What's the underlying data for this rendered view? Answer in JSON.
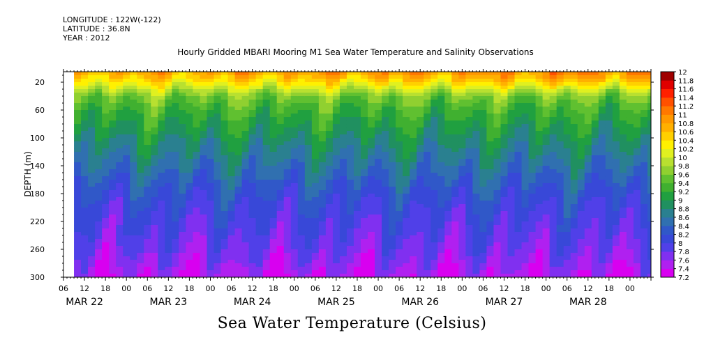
{
  "header": {
    "longitude": "LONGITUDE : 122W(-122)",
    "latitude": "LATITUDE : 36.8N",
    "year": "YEAR : 2012"
  },
  "chart_data": {
    "type": "heatmap",
    "title": "Hourly Gridded MBARI Mooring M1 Sea Water Temperature and Salinity Observations",
    "xlabel": "",
    "ylabel": "DEPTH (m)",
    "variable_label": "Sea Water Temperature (Celsius)",
    "x_hour_ticks": [
      "06",
      "12",
      "18",
      "00",
      "06",
      "12",
      "18",
      "00",
      "06",
      "12",
      "18",
      "00",
      "06",
      "12",
      "18",
      "00",
      "06",
      "12",
      "18",
      "00",
      "06",
      "12",
      "18",
      "00",
      "06",
      "12",
      "18",
      "00"
    ],
    "x_date_ticks": [
      "MAR 22",
      "MAR 23",
      "MAR 24",
      "MAR 25",
      "MAR 26",
      "MAR 27",
      "MAR 28"
    ],
    "x_range_hours": [
      0,
      168
    ],
    "data_start_hour": 3,
    "y_ticks": [
      20,
      60,
      100,
      140,
      180,
      220,
      260,
      300
    ],
    "ylim": [
      300,
      5
    ],
    "colorbar_levels": [
      7.2,
      7.4,
      7.6,
      7.8,
      8,
      8.2,
      8.4,
      8.6,
      8.8,
      9,
      9.2,
      9.4,
      9.6,
      9.8,
      10,
      10.2,
      10.4,
      10.6,
      10.8,
      11,
      11.2,
      11.4,
      11.6,
      11.8,
      12
    ],
    "colorbar_labels": [
      "12",
      "11.8",
      "11.6",
      "11.4",
      "11.2",
      "11",
      "10.8",
      "10.6",
      "10.4",
      "10.2",
      "10",
      "9.8",
      "9.6",
      "9.4",
      "9.2",
      "9",
      "8.8",
      "8.6",
      "8.4",
      "8.2",
      "8",
      "7.8",
      "7.6",
      "7.4",
      "7.2"
    ],
    "colors": [
      "#d800f0",
      "#b020f0",
      "#8030f0",
      "#5040e8",
      "#3848d8",
      "#3058c8",
      "#3070b0",
      "#2a8090",
      "#209060",
      "#20a040",
      "#40b030",
      "#60c030",
      "#90d030",
      "#b8e030",
      "#e0f020",
      "#fff000",
      "#ffd000",
      "#ffb000",
      "#ff9800",
      "#ff7800",
      "#ff5000",
      "#ff2000",
      "#e00000",
      "#a00000"
    ],
    "depth_profile": [
      {
        "depth": 5,
        "temp": 10.9
      },
      {
        "depth": 20,
        "temp": 10.4
      },
      {
        "depth": 40,
        "temp": 9.6
      },
      {
        "depth": 60,
        "temp": 9.3
      },
      {
        "depth": 100,
        "temp": 8.9
      },
      {
        "depth": 140,
        "temp": 8.55
      },
      {
        "depth": 180,
        "temp": 8.2
      },
      {
        "depth": 220,
        "temp": 7.95
      },
      {
        "depth": 260,
        "temp": 7.75
      },
      {
        "depth": 300,
        "temp": 7.45
      }
    ]
  }
}
